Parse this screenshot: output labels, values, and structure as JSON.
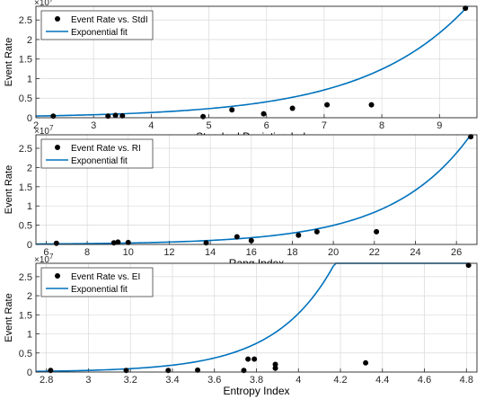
{
  "colors": {
    "fit_line": "#0072BD",
    "points": "#000000",
    "grid": "#d9d9d9",
    "axis": "#262626"
  },
  "chart_data": [
    {
      "type": "scatter",
      "exponent_label": "×10",
      "exponent_power": "7",
      "xlabel": "Standard Deviation Index",
      "ylabel": "Event Rate",
      "xlim": [
        2,
        9.65
      ],
      "ylim": [
        0,
        2.85
      ],
      "xticks": [
        2,
        3,
        4,
        5,
        6,
        7,
        8,
        9
      ],
      "yticks": [
        0,
        0.5,
        1,
        1.5,
        2,
        2.5
      ],
      "ytick_labels": [
        "0",
        "0.5",
        "1",
        "1.5",
        "2",
        "2.5"
      ],
      "grid": true,
      "legend": "top-left",
      "series": [
        {
          "name": "Event Rate vs. StdI",
          "kind": "points",
          "x": [
            2.3,
            3.25,
            3.38,
            3.5,
            4.9,
            5.4,
            5.95,
            6.45,
            7.05,
            7.82,
            9.45
          ],
          "y": [
            0.04,
            0.04,
            0.06,
            0.05,
            0.03,
            0.2,
            0.1,
            0.24,
            0.33,
            0.33,
            2.8
          ]
        },
        {
          "name": "Exponential fit",
          "kind": "line",
          "model": {
            "a": 0.0143,
            "b": 0.5579
          },
          "x_range": [
            2,
            9.5
          ]
        }
      ]
    },
    {
      "type": "scatter",
      "exponent_label": "×10",
      "exponent_power": "7",
      "xlabel": "Rang Index",
      "ylabel": "Event Rate",
      "xlim": [
        5.5,
        27
      ],
      "ylim": [
        0,
        2.85
      ],
      "xticks": [
        6,
        8,
        10,
        12,
        14,
        16,
        18,
        20,
        22,
        24,
        26
      ],
      "yticks": [
        0,
        0.5,
        1,
        1.5,
        2,
        2.5
      ],
      "ytick_labels": [
        "0",
        "0.5",
        "1",
        "1.5",
        "2",
        "2.5"
      ],
      "grid": true,
      "legend": "top-left",
      "series": [
        {
          "name": "Event Rate vs. RI",
          "kind": "points",
          "x": [
            6.5,
            9.3,
            9.5,
            10,
            13.8,
            15.3,
            16,
            18.3,
            19.2,
            22.1,
            26.7
          ],
          "y": [
            0.03,
            0.04,
            0.06,
            0.05,
            0.04,
            0.2,
            0.1,
            0.24,
            0.33,
            0.33,
            2.8
          ]
        },
        {
          "name": "Exponential fit",
          "kind": "line",
          "model": {
            "a": 0.00269,
            "b": 0.2609
          },
          "x_range": [
            5.5,
            26.8
          ]
        }
      ]
    },
    {
      "type": "scatter",
      "exponent_label": "×10",
      "exponent_power": "7",
      "xlabel": "Entropy Index",
      "ylabel": "Event Rate",
      "xlim": [
        2.75,
        4.85
      ],
      "ylim": [
        0,
        2.85
      ],
      "xticks": [
        2.8,
        3,
        3.2,
        3.4,
        3.6,
        3.8,
        4,
        4.2,
        4.4,
        4.6,
        4.8
      ],
      "yticks": [
        0,
        0.5,
        1,
        1.5,
        2,
        2.5
      ],
      "ytick_labels": [
        "0",
        "0.5",
        "1",
        "1.5",
        "2",
        "2.5"
      ],
      "grid": true,
      "legend": "top-left",
      "series": [
        {
          "name": "Event Rate vs. EI",
          "kind": "points",
          "x": [
            2.82,
            3.18,
            3.38,
            3.52,
            3.74,
            3.76,
            3.79,
            3.89,
            3.89,
            4.32,
            4.81
          ],
          "y": [
            0.04,
            0.04,
            0.04,
            0.05,
            0.04,
            0.34,
            0.34,
            0.1,
            0.2,
            0.24,
            2.8
          ]
        },
        {
          "name": "Exponential fit",
          "kind": "line",
          "model": {
            "a": 9.8e-07,
            "b": 3.566
          },
          "x_range": [
            2.75,
            4.81
          ]
        }
      ]
    }
  ]
}
